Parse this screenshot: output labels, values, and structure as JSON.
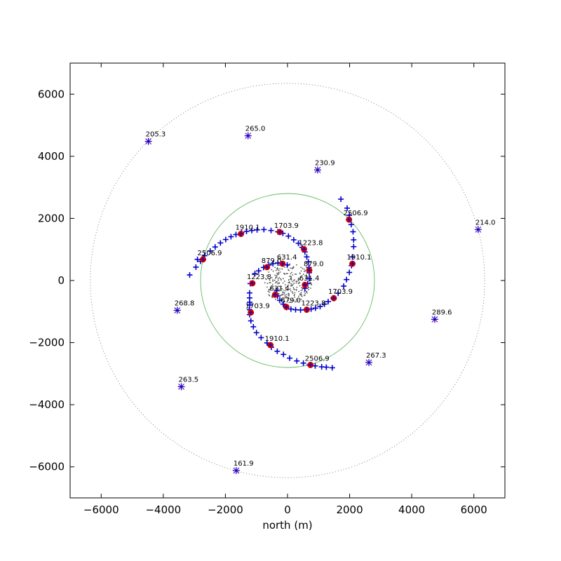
{
  "chart_data": {
    "type": "scatter",
    "title": "",
    "xlabel": "north (m)",
    "ylabel": "",
    "xlim": [
      -7000,
      7000
    ],
    "ylim": [
      -7000,
      7000
    ],
    "xticks": [
      -6000,
      -4000,
      -2000,
      0,
      2000,
      4000,
      6000
    ],
    "yticks": [
      -6000,
      -4000,
      -2000,
      0,
      2000,
      4000,
      6000
    ],
    "xtick_labels": [
      "−6000",
      "−4000",
      "−2000",
      "0",
      "2000",
      "4000",
      "6000"
    ],
    "ytick_labels": [
      "−6000",
      "−4000",
      "−2000",
      "0",
      "2000",
      "4000",
      "6000"
    ],
    "grid": false,
    "colors": {
      "arm_markers": "#0000cc",
      "highlight_points": "#dd0000",
      "outer_markers": "#6a0dad",
      "core_cluster": "#555555",
      "inner_circle": "#66bb66",
      "outer_circle": "#777777"
    },
    "circles": [
      {
        "center": [
          0,
          0
        ],
        "radius": 2800,
        "style": "solid"
      },
      {
        "center": [
          0,
          0
        ],
        "radius": 6350,
        "style": "dotted"
      }
    ],
    "arm_points": [
      [
        -3150,
        180
      ],
      [
        -2950,
        430
      ],
      [
        -2800,
        620
      ],
      [
        -2670,
        800
      ],
      [
        -2490,
        950
      ],
      [
        -2330,
        1080
      ],
      [
        -2160,
        1210
      ],
      [
        -1990,
        1320
      ],
      [
        -1820,
        1410
      ],
      [
        -1660,
        1480
      ],
      [
        -1480,
        1540
      ],
      [
        -1320,
        1580
      ],
      [
        -1150,
        1610
      ],
      [
        -980,
        1630
      ],
      [
        -760,
        1640
      ],
      [
        -530,
        1610
      ],
      [
        -310,
        1570
      ],
      [
        -150,
        1520
      ],
      [
        30,
        1430
      ],
      [
        200,
        1310
      ],
      [
        350,
        1200
      ],
      [
        470,
        1070
      ],
      [
        560,
        920
      ],
      [
        620,
        760
      ],
      [
        670,
        600
      ],
      [
        690,
        420
      ],
      [
        700,
        250
      ],
      [
        700,
        60
      ],
      [
        650,
        -100
      ],
      [
        560,
        -250
      ],
      [
        -2900,
        680
      ],
      [
        -1200,
        -100
      ],
      [
        -1050,
        220
      ],
      [
        -930,
        310
      ],
      [
        -770,
        420
      ],
      [
        -600,
        500
      ],
      [
        -470,
        540
      ],
      [
        -310,
        560
      ],
      [
        -160,
        540
      ],
      [
        -10,
        500
      ],
      [
        -1220,
        -790
      ],
      [
        -1220,
        -940
      ],
      [
        -1220,
        -1100
      ],
      [
        -1180,
        -1300
      ],
      [
        -1100,
        -1490
      ],
      [
        -1000,
        -1680
      ],
      [
        -850,
        -1840
      ],
      [
        -660,
        -2010
      ],
      [
        -520,
        -2150
      ],
      [
        -330,
        -2280
      ],
      [
        -130,
        -2380
      ],
      [
        70,
        -2500
      ],
      [
        300,
        -2590
      ],
      [
        510,
        -2660
      ],
      [
        700,
        -2720
      ],
      [
        890,
        -2750
      ],
      [
        1100,
        -2780
      ],
      [
        1250,
        -2790
      ],
      [
        1440,
        -2810
      ],
      [
        -1220,
        -400
      ],
      [
        -1220,
        -560
      ],
      [
        -1220,
        -700
      ],
      [
        -350,
        -330
      ],
      [
        -320,
        -500
      ],
      [
        -250,
        -640
      ],
      [
        -140,
        -760
      ],
      [
        -30,
        -870
      ],
      [
        110,
        -920
      ],
      [
        260,
        -940
      ],
      [
        420,
        -950
      ],
      [
        580,
        -940
      ],
      [
        760,
        -920
      ],
      [
        900,
        -890
      ],
      [
        1050,
        -840
      ],
      [
        1190,
        -760
      ],
      [
        1310,
        -680
      ],
      [
        1470,
        -570
      ],
      [
        1630,
        -410
      ],
      [
        1810,
        -180
      ],
      [
        1900,
        30
      ],
      [
        1990,
        260
      ],
      [
        2060,
        480
      ],
      [
        2090,
        760
      ],
      [
        2130,
        1090
      ],
      [
        2130,
        1310
      ],
      [
        2110,
        1570
      ],
      [
        2050,
        1800
      ],
      [
        1990,
        2100
      ],
      [
        1920,
        2330
      ],
      [
        1720,
        2620
      ]
    ],
    "highlight_points": [
      {
        "label": "2506.9",
        "x": 1980,
        "y": 1960
      },
      {
        "label": "1910.1",
        "x": 2090,
        "y": 540
      },
      {
        "label": "1703.9",
        "x": 1490,
        "y": -570
      },
      {
        "label": "1223.8",
        "x": 620,
        "y": -940
      },
      {
        "label": "879.0",
        "x": -40,
        "y": -850
      },
      {
        "label": "631.4",
        "x": -400,
        "y": -460
      },
      {
        "label": "1703.9",
        "x": -1180,
        "y": -1030
      },
      {
        "label": "1910.1",
        "x": -550,
        "y": -2080
      },
      {
        "label": "2506.9",
        "x": 740,
        "y": -2720
      },
      {
        "label": "631.4",
        "x": 560,
        "y": -140
      },
      {
        "label": "879.0",
        "x": 700,
        "y": 330
      },
      {
        "label": "1223.8",
        "x": 530,
        "y": 1010
      },
      {
        "label": "1703.9",
        "x": -250,
        "y": 1560
      },
      {
        "label": "1910.1",
        "x": -1500,
        "y": 1500
      },
      {
        "label": "2506.9",
        "x": -2720,
        "y": 680
      },
      {
        "label": "1223.8",
        "x": -1130,
        "y": -90
      },
      {
        "label": "879.0",
        "x": -660,
        "y": 430
      },
      {
        "label": "631.4",
        "x": -160,
        "y": 540
      }
    ],
    "outer_points": [
      {
        "label": "205.3",
        "x": -4480,
        "y": 4480
      },
      {
        "label": "265.0",
        "x": -1270,
        "y": 4660
      },
      {
        "label": "230.9",
        "x": 970,
        "y": 3560
      },
      {
        "label": "214.0",
        "x": 6140,
        "y": 1640
      },
      {
        "label": "268.8",
        "x": -3550,
        "y": -960
      },
      {
        "label": "289.6",
        "x": 4740,
        "y": -1250
      },
      {
        "label": "267.3",
        "x": 2620,
        "y": -2640
      },
      {
        "label": "263.5",
        "x": -3420,
        "y": -3420
      },
      {
        "label": "161.9",
        "x": -1650,
        "y": -6120
      }
    ]
  }
}
